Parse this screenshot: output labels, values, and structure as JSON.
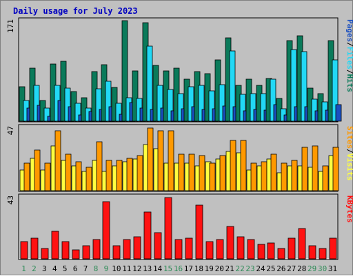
{
  "title": "Daily usage for July 2023",
  "colors": {
    "background": "#c0c0c0",
    "plot_bg": "#c0c0c0",
    "hits": "#0a7a5a",
    "files": "#22d8f5",
    "pages": "#1a4fc0",
    "visits": "#ffff40",
    "sites": "#ff9900",
    "kbytes": "#ff1111",
    "title": "#0000c0",
    "weekend_tick": "#2e8b57",
    "weekday_tick": "#000000"
  },
  "chart_data": [
    {
      "type": "bar",
      "panel": "hits-files-pages",
      "ymax_label": "171",
      "ylim": [
        0,
        171
      ],
      "categories": [
        "1",
        "2",
        "3",
        "4",
        "5",
        "6",
        "7",
        "8",
        "9",
        "10",
        "11",
        "12",
        "13",
        "14",
        "15",
        "16",
        "17",
        "18",
        "19",
        "20",
        "21",
        "22",
        "23",
        "24",
        "25",
        "26",
        "27",
        "28",
        "29",
        "30",
        "31"
      ],
      "legend": [
        {
          "text": "Pages",
          "color_key": "pages"
        },
        {
          "text": "/",
          "color_key": "weekday_tick"
        },
        {
          "text": "Files",
          "color_key": "files"
        },
        {
          "text": "/",
          "color_key": "weekday_tick"
        },
        {
          "text": "Hits",
          "color_key": "hits"
        }
      ],
      "series": [
        {
          "name": "Hits",
          "color_key": "hits",
          "values": [
            58,
            90,
            35,
            97,
            101,
            50,
            40,
            84,
            95,
            57,
            170,
            85,
            166,
            94,
            85,
            90,
            71,
            84,
            80,
            104,
            141,
            61,
            71,
            61,
            72,
            38,
            136,
            144,
            56,
            47,
            136
          ]
        },
        {
          "name": "Files",
          "color_key": "files",
          "values": [
            35,
            61,
            22,
            61,
            56,
            30,
            22,
            55,
            67,
            30,
            39,
            38,
            127,
            61,
            54,
            47,
            58,
            61,
            51,
            62,
            119,
            45,
            46,
            47,
            71,
            21,
            121,
            118,
            37,
            33,
            103
          ]
        },
        {
          "name": "Pages",
          "color_key": "pages",
          "values": [
            22,
            27,
            8,
            35,
            24,
            11,
            16,
            20,
            25,
            12,
            31,
            22,
            20,
            22,
            18,
            21,
            24,
            20,
            21,
            26,
            25,
            18,
            20,
            19,
            28,
            10,
            25,
            25,
            18,
            19,
            28
          ]
        }
      ]
    },
    {
      "type": "bar",
      "panel": "visits-sites",
      "ymax_label": "47",
      "ylim": [
        0,
        47
      ],
      "categories": [
        "1",
        "2",
        "3",
        "4",
        "5",
        "6",
        "7",
        "8",
        "9",
        "10",
        "11",
        "12",
        "13",
        "14",
        "15",
        "16",
        "17",
        "18",
        "19",
        "20",
        "21",
        "22",
        "23",
        "24",
        "25",
        "26",
        "27",
        "28",
        "29",
        "30",
        "31"
      ],
      "legend": [
        {
          "text": "Sites",
          "color_key": "sites"
        },
        {
          "text": "/",
          "color_key": "weekday_tick"
        },
        {
          "text": "Visits",
          "color_key": "visits"
        }
      ],
      "series": [
        {
          "name": "Visits",
          "color_key": "visits",
          "values": [
            15,
            24,
            15,
            33,
            22,
            18,
            14,
            22,
            14,
            18,
            21,
            23,
            34,
            31,
            20,
            20,
            20,
            18,
            21,
            23,
            29,
            28,
            15,
            18,
            23,
            13,
            18,
            18,
            17,
            14,
            26
          ]
        },
        {
          "name": "Sites",
          "color_key": "sites",
          "values": [
            20,
            30,
            20,
            44,
            27,
            21,
            17,
            36,
            22,
            22,
            24,
            26,
            46,
            44,
            44,
            27,
            27,
            26,
            20,
            26,
            37,
            37,
            20,
            21,
            27,
            20,
            22,
            32,
            33,
            18,
            32
          ]
        }
      ]
    },
    {
      "type": "bar",
      "panel": "kbytes",
      "ymax_label": "43",
      "ylim": [
        0,
        43
      ],
      "categories": [
        "1",
        "2",
        "3",
        "4",
        "5",
        "6",
        "7",
        "8",
        "9",
        "10",
        "11",
        "12",
        "13",
        "14",
        "15",
        "16",
        "17",
        "18",
        "19",
        "20",
        "21",
        "22",
        "23",
        "24",
        "25",
        "26",
        "27",
        "28",
        "29",
        "30",
        "31"
      ],
      "legend": [
        {
          "text": "KBytes",
          "color_key": "kbytes"
        }
      ],
      "series": [
        {
          "name": "KBytes",
          "color_key": "kbytes",
          "values": [
            12,
            14,
            7,
            19,
            12,
            6,
            9,
            13,
            39,
            9,
            13,
            15,
            32,
            18,
            42,
            13,
            14,
            37,
            12,
            13,
            22,
            15,
            13,
            10,
            11,
            7,
            14,
            21,
            9,
            7,
            14
          ]
        }
      ]
    }
  ],
  "x_axis": {
    "labels": [
      "1",
      "2",
      "3",
      "4",
      "5",
      "6",
      "7",
      "8",
      "9",
      "10",
      "11",
      "12",
      "13",
      "14",
      "15",
      "16",
      "17",
      "18",
      "19",
      "20",
      "21",
      "22",
      "23",
      "24",
      "25",
      "26",
      "27",
      "28",
      "29",
      "30",
      "31"
    ],
    "weekend": [
      1,
      2,
      8,
      9,
      15,
      16,
      22,
      23,
      29,
      30
    ]
  }
}
